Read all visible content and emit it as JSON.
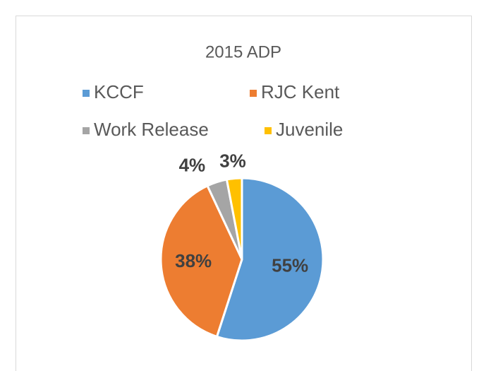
{
  "chart_data": {
    "type": "pie",
    "title": "2015 ADP",
    "categories": [
      "KCCF",
      "RJC Kent",
      "Work Release",
      "Juvenile"
    ],
    "values": [
      55,
      38,
      4,
      3
    ],
    "value_labels": [
      "55%",
      "38%",
      "4%",
      "3%"
    ],
    "colors": [
      "#5b9bd5",
      "#ed7d31",
      "#a5a5a5",
      "#ffc000"
    ],
    "legend": "top"
  }
}
